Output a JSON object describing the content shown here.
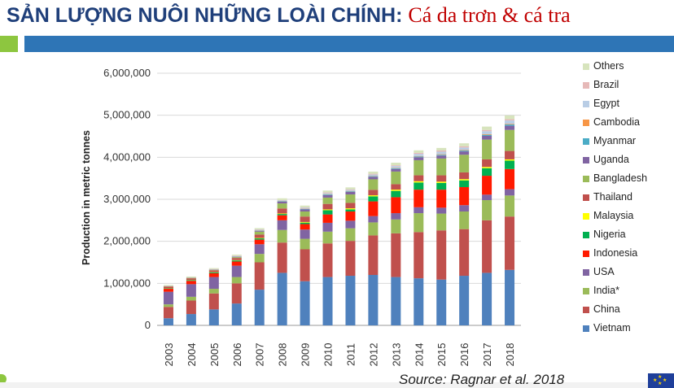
{
  "header": {
    "title_vi": "SẢN LƯỢNG NUÔI NHỮNG LOÀI CHÍNH",
    "colon": ":",
    "title_species": "Cá da trơn & cá tra"
  },
  "source": "Source: Ragnar et al. 2018",
  "colors": {
    "title_blue": "#1f3f7a",
    "title_red": "#c00000",
    "band_blue": "#2e75b6",
    "band_green": "#8dc63f"
  },
  "chart_data": {
    "type": "bar",
    "stacked": true,
    "ylabel": "Production in metric tonnes",
    "ylim": [
      0,
      6000000
    ],
    "yticks": [
      "0",
      "1,000,000",
      "2,000,000",
      "3,000,000",
      "4,000,000",
      "5,000,000",
      "6,000,000"
    ],
    "ytick_values": [
      0,
      1000000,
      2000000,
      3000000,
      4000000,
      5000000,
      6000000
    ],
    "grid": true,
    "legend_position": "right",
    "categories": [
      "2003",
      "2004",
      "2005",
      "2006",
      "2007",
      "2008",
      "2009",
      "2010",
      "2011",
      "2012",
      "2013",
      "2014",
      "2015",
      "2016",
      "2017",
      "2018"
    ],
    "series": [
      {
        "name": "Vietnam",
        "color": "#4f81bd",
        "values": [
          170000,
          270000,
          380000,
          520000,
          850000,
          1250000,
          1050000,
          1150000,
          1180000,
          1200000,
          1150000,
          1120000,
          1090000,
          1180000,
          1250000,
          1320000
        ]
      },
      {
        "name": "China",
        "color": "#c0504d",
        "values": [
          270000,
          320000,
          380000,
          480000,
          650000,
          720000,
          760000,
          800000,
          830000,
          940000,
          1040000,
          1100000,
          1170000,
          1110000,
          1250000,
          1270000
        ]
      },
      {
        "name": "India*",
        "color": "#9bbb59",
        "values": [
          60000,
          90000,
          110000,
          150000,
          200000,
          300000,
          250000,
          280000,
          300000,
          310000,
          330000,
          450000,
          400000,
          420000,
          480000,
          500000
        ]
      },
      {
        "name": "USA",
        "color": "#8064a2",
        "values": [
          300000,
          300000,
          280000,
          270000,
          230000,
          230000,
          220000,
          210000,
          180000,
          150000,
          150000,
          140000,
          140000,
          150000,
          130000,
          150000
        ]
      },
      {
        "name": "Indonesia",
        "color": "#ff1a00",
        "values": [
          70000,
          80000,
          90000,
          100000,
          110000,
          120000,
          130000,
          200000,
          220000,
          350000,
          380000,
          420000,
          430000,
          430000,
          450000,
          480000
        ]
      },
      {
        "name": "Nigeria",
        "color": "#00b050",
        "values": [
          10000,
          15000,
          20000,
          25000,
          30000,
          30000,
          35000,
          100000,
          50000,
          120000,
          150000,
          170000,
          160000,
          160000,
          180000,
          200000
        ]
      },
      {
        "name": "Malaysia",
        "color": "#ffff00",
        "values": [
          5000,
          5000,
          6000,
          8000,
          10000,
          12000,
          15000,
          20000,
          25000,
          25000,
          30000,
          30000,
          30000,
          30000,
          30000,
          30000
        ]
      },
      {
        "name": "Thailand",
        "color": "#c0504d",
        "values": [
          40000,
          40000,
          45000,
          50000,
          80000,
          120000,
          130000,
          130000,
          130000,
          130000,
          130000,
          140000,
          150000,
          160000,
          180000,
          200000
        ]
      },
      {
        "name": "Bangladesh",
        "color": "#9bbb59",
        "values": [
          5000,
          10000,
          10000,
          20000,
          70000,
          120000,
          120000,
          150000,
          200000,
          250000,
          300000,
          360000,
          400000,
          420000,
          470000,
          500000
        ]
      },
      {
        "name": "Uganda",
        "color": "#8064a2",
        "values": [
          2000,
          2000,
          5000,
          10000,
          20000,
          40000,
          50000,
          60000,
          60000,
          60000,
          60000,
          70000,
          70000,
          80000,
          90000,
          100000
        ]
      },
      {
        "name": "Myanmar",
        "color": "#4bacc6",
        "values": [
          2000,
          2000,
          3000,
          5000,
          8000,
          10000,
          12000,
          15000,
          15000,
          15000,
          20000,
          20000,
          20000,
          20000,
          25000,
          30000
        ]
      },
      {
        "name": "Cambodia",
        "color": "#f79646",
        "values": [
          2000,
          2000,
          3000,
          3000,
          5000,
          6000,
          6000,
          8000,
          8000,
          8000,
          10000,
          10000,
          12000,
          12000,
          15000,
          15000
        ]
      },
      {
        "name": "Egypt",
        "color": "#b9cde5",
        "values": [
          3000,
          3000,
          5000,
          8000,
          10000,
          15000,
          20000,
          25000,
          25000,
          30000,
          40000,
          50000,
          60000,
          60000,
          70000,
          80000
        ]
      },
      {
        "name": "Brazil",
        "color": "#e6b9b8",
        "values": [
          3000,
          3000,
          5000,
          8000,
          10000,
          10000,
          12000,
          15000,
          15000,
          20000,
          20000,
          25000,
          30000,
          30000,
          30000,
          30000
        ]
      },
      {
        "name": "Others",
        "color": "#d7e4bd",
        "values": [
          20000,
          20000,
          20000,
          25000,
          30000,
          40000,
          40000,
          45000,
          45000,
          50000,
          60000,
          60000,
          60000,
          70000,
          80000,
          90000
        ]
      }
    ]
  }
}
